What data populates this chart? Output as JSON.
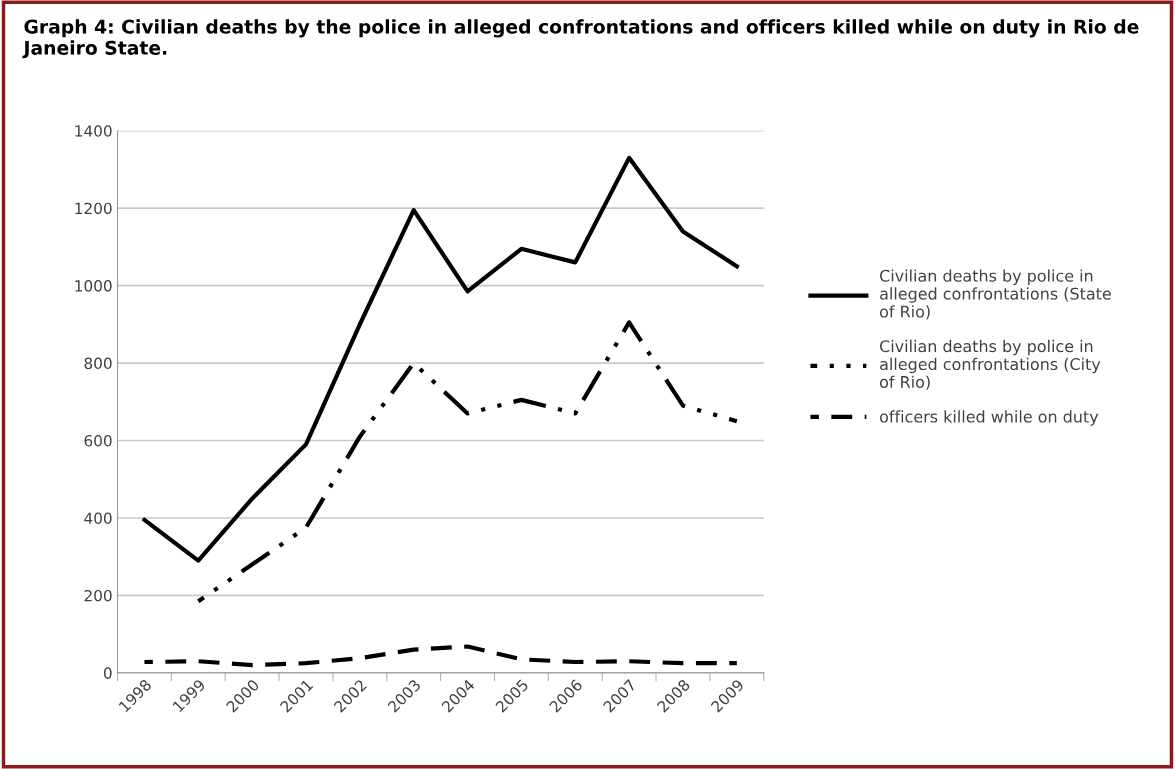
{
  "chart_data": {
    "type": "line",
    "title": "Graph 4: Civilian deaths by the police in alleged confrontations and officers killed while on duty in Rio de Janeiro State.",
    "categories": [
      "1998",
      "1999",
      "2000",
      "2001",
      "2002",
      "2003",
      "2004",
      "2005",
      "2006",
      "2007",
      "2008",
      "2009"
    ],
    "series": [
      {
        "name": "Civilian deaths by police in alleged confrontations (State of Rio)",
        "color": "#000000",
        "line_style": "solid",
        "values": [
          395,
          290,
          450,
          590,
          900,
          1195,
          985,
          1095,
          1060,
          1330,
          1140,
          1050
        ]
      },
      {
        "name": "Civilian deaths by police in alleged confrontations (City of Rio)",
        "color": "#000000",
        "line_style": "dashdotdot",
        "values": [
          null,
          185,
          280,
          375,
          610,
          800,
          670,
          705,
          670,
          905,
          690,
          650
        ]
      },
      {
        "name": "officers killed while on duty",
        "color": "#000000",
        "line_style": "dashed",
        "values": [
          28,
          30,
          20,
          25,
          38,
          60,
          68,
          35,
          28,
          30,
          25,
          25
        ]
      }
    ],
    "ylim": [
      0,
      1400
    ],
    "yticks": [
      0,
      200,
      400,
      600,
      800,
      1000,
      1200,
      1400
    ],
    "grid": "y",
    "legend": "right",
    "marker": "none"
  }
}
